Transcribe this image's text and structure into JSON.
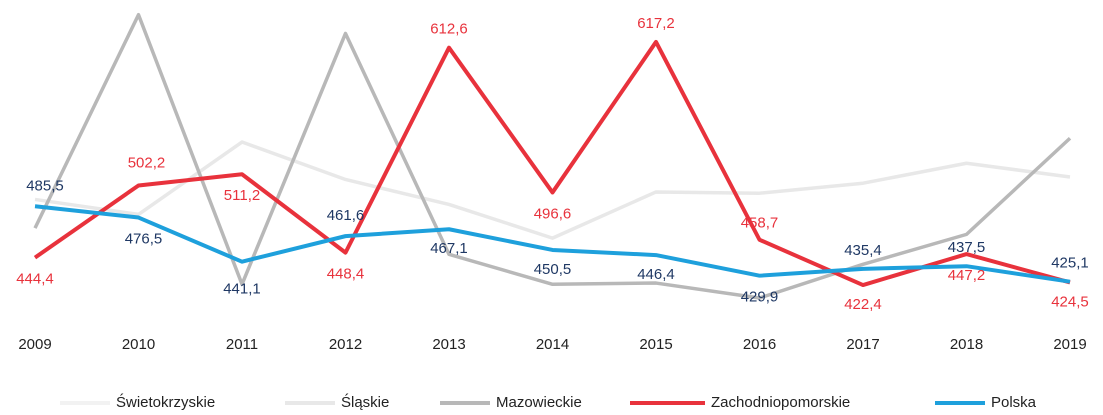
{
  "chart_data": {
    "type": "line",
    "categories": [
      "2009",
      "2010",
      "2011",
      "2012",
      "2013",
      "2014",
      "2015",
      "2016",
      "2017",
      "2018",
      "2019"
    ],
    "ylim": [
      400,
      650
    ],
    "series": [
      {
        "name": "Świetokrzyskie",
        "color": "#f2f2f2",
        "values": [
          null,
          null,
          null,
          null,
          null,
          null,
          null,
          null,
          null,
          null,
          null
        ]
      },
      {
        "name": "Śląskie",
        "color": "#e8e8e8",
        "values": [
          491,
          479,
          537,
          507,
          487,
          460,
          497,
          496,
          504,
          520,
          509
        ]
      },
      {
        "name": "Mazowieckie",
        "color": "#b8b8b8",
        "values": [
          468,
          639,
          423,
          624,
          447,
          423,
          424,
          412,
          439,
          463,
          540
        ]
      },
      {
        "name": "Zachodniopomorskie",
        "color": "#e8323c",
        "label_color": "#e8323c",
        "values": [
          444.4,
          502.2,
          511.2,
          448.4,
          612.6,
          496.6,
          617.2,
          458.7,
          422.4,
          447.2,
          424.5
        ],
        "value_labels": [
          "444,4",
          "502,2",
          "511,2",
          "448,4",
          "612,6",
          "496,6",
          "617,2",
          "458,7",
          "422,4",
          "447,2",
          "424,5"
        ]
      },
      {
        "name": "Polska",
        "color": "#1ea0dc",
        "label_color": "#1f3864",
        "values": [
          485.5,
          476.5,
          441.1,
          461.6,
          467.1,
          450.5,
          446.4,
          429.9,
          435.4,
          437.5,
          425.1
        ],
        "value_labels": [
          "485,5",
          "476,5",
          "441,1",
          "461,6",
          "467,1",
          "450,5",
          "446,4",
          "429,9",
          "435,4",
          "437,5",
          "425,1"
        ]
      }
    ],
    "legend": "bottom"
  }
}
